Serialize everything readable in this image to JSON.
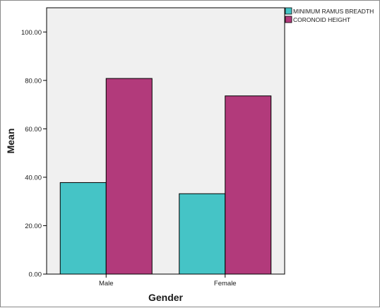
{
  "chart_data": {
    "type": "bar",
    "title": "",
    "xlabel": "Gender",
    "ylabel": "Mean",
    "categories": [
      "Male",
      "Female"
    ],
    "series": [
      {
        "name": "MINIMUM RAMUS BREADTH",
        "values": [
          37.8,
          33.2
        ],
        "color": "#45c4c6"
      },
      {
        "name": "CORONOID HEIGHT",
        "values": [
          80.8,
          73.6
        ],
        "color": "#b23a7b"
      }
    ],
    "ylim": [
      0,
      110
    ],
    "yticks": [
      "0.00",
      "20.00",
      "40.00",
      "60.00",
      "80.00",
      "100.00"
    ],
    "ytick_values": [
      0,
      20,
      40,
      60,
      80,
      100
    ],
    "grid": false,
    "legend_position": "top-right",
    "plot_background": "#f0f0f0"
  }
}
